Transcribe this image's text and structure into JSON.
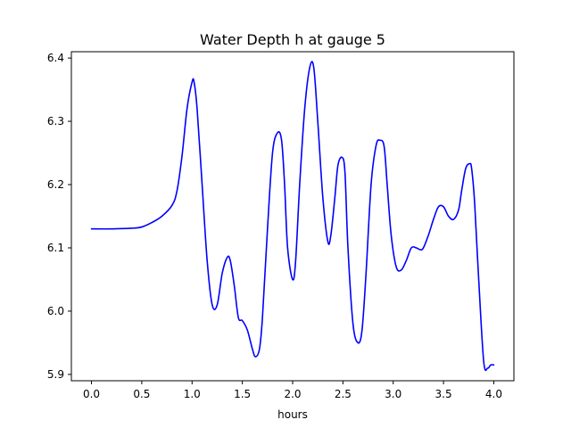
{
  "chart_data": {
    "type": "line",
    "title": "Water Depth h at gauge 5",
    "xlabel": "hours",
    "ylabel": "",
    "xlim": [
      -0.2,
      4.2
    ],
    "ylim": [
      5.89,
      6.41
    ],
    "xticks": [
      0.0,
      0.5,
      1.0,
      1.5,
      2.0,
      2.5,
      3.0,
      3.5,
      4.0
    ],
    "xtick_labels": [
      "0.0",
      "0.5",
      "1.0",
      "1.5",
      "2.0",
      "2.5",
      "3.0",
      "3.5",
      "4.0"
    ],
    "yticks": [
      5.9,
      6.0,
      6.1,
      6.2,
      6.3,
      6.4
    ],
    "ytick_labels": [
      "5.9",
      "6.0",
      "6.1",
      "6.2",
      "6.3",
      "6.4"
    ],
    "grid": false,
    "series": [
      {
        "color": "#0000ff",
        "x": [
          0.0,
          0.2,
          0.4,
          0.5,
          0.6,
          0.7,
          0.8,
          0.85,
          0.9,
          0.95,
          1.0,
          1.02,
          1.05,
          1.1,
          1.15,
          1.2,
          1.25,
          1.3,
          1.35,
          1.38,
          1.42,
          1.46,
          1.5,
          1.55,
          1.6,
          1.63,
          1.67,
          1.7,
          1.75,
          1.8,
          1.85,
          1.89,
          1.92,
          1.95,
          2.0,
          2.03,
          2.07,
          2.12,
          2.17,
          2.21,
          2.25,
          2.3,
          2.35,
          2.38,
          2.42,
          2.45,
          2.49,
          2.52,
          2.55,
          2.6,
          2.65,
          2.69,
          2.73,
          2.78,
          2.83,
          2.87,
          2.91,
          2.94,
          2.98,
          3.03,
          3.08,
          3.13,
          3.18,
          3.23,
          3.27,
          3.3,
          3.35,
          3.4,
          3.45,
          3.5,
          3.55,
          3.6,
          3.65,
          3.68,
          3.72,
          3.76,
          3.78,
          3.81,
          3.85,
          3.9,
          3.94,
          3.97,
          4.0
        ],
        "y": [
          6.13,
          6.13,
          6.131,
          6.133,
          6.14,
          6.15,
          6.167,
          6.19,
          6.245,
          6.32,
          6.362,
          6.362,
          6.32,
          6.2,
          6.08,
          6.01,
          6.01,
          6.06,
          6.085,
          6.08,
          6.04,
          5.99,
          5.985,
          5.97,
          5.94,
          5.928,
          5.94,
          5.99,
          6.13,
          6.25,
          6.282,
          6.27,
          6.2,
          6.1,
          6.05,
          6.08,
          6.2,
          6.32,
          6.385,
          6.385,
          6.3,
          6.18,
          6.11,
          6.12,
          6.18,
          6.23,
          6.243,
          6.22,
          6.1,
          5.98,
          5.95,
          5.97,
          6.06,
          6.2,
          6.262,
          6.27,
          6.26,
          6.2,
          6.12,
          6.07,
          6.065,
          6.08,
          6.1,
          6.1,
          6.097,
          6.1,
          6.12,
          6.145,
          6.165,
          6.165,
          6.15,
          6.145,
          6.16,
          6.19,
          6.225,
          6.233,
          6.225,
          6.17,
          6.05,
          5.92,
          5.91,
          5.915,
          5.915
        ]
      }
    ]
  }
}
